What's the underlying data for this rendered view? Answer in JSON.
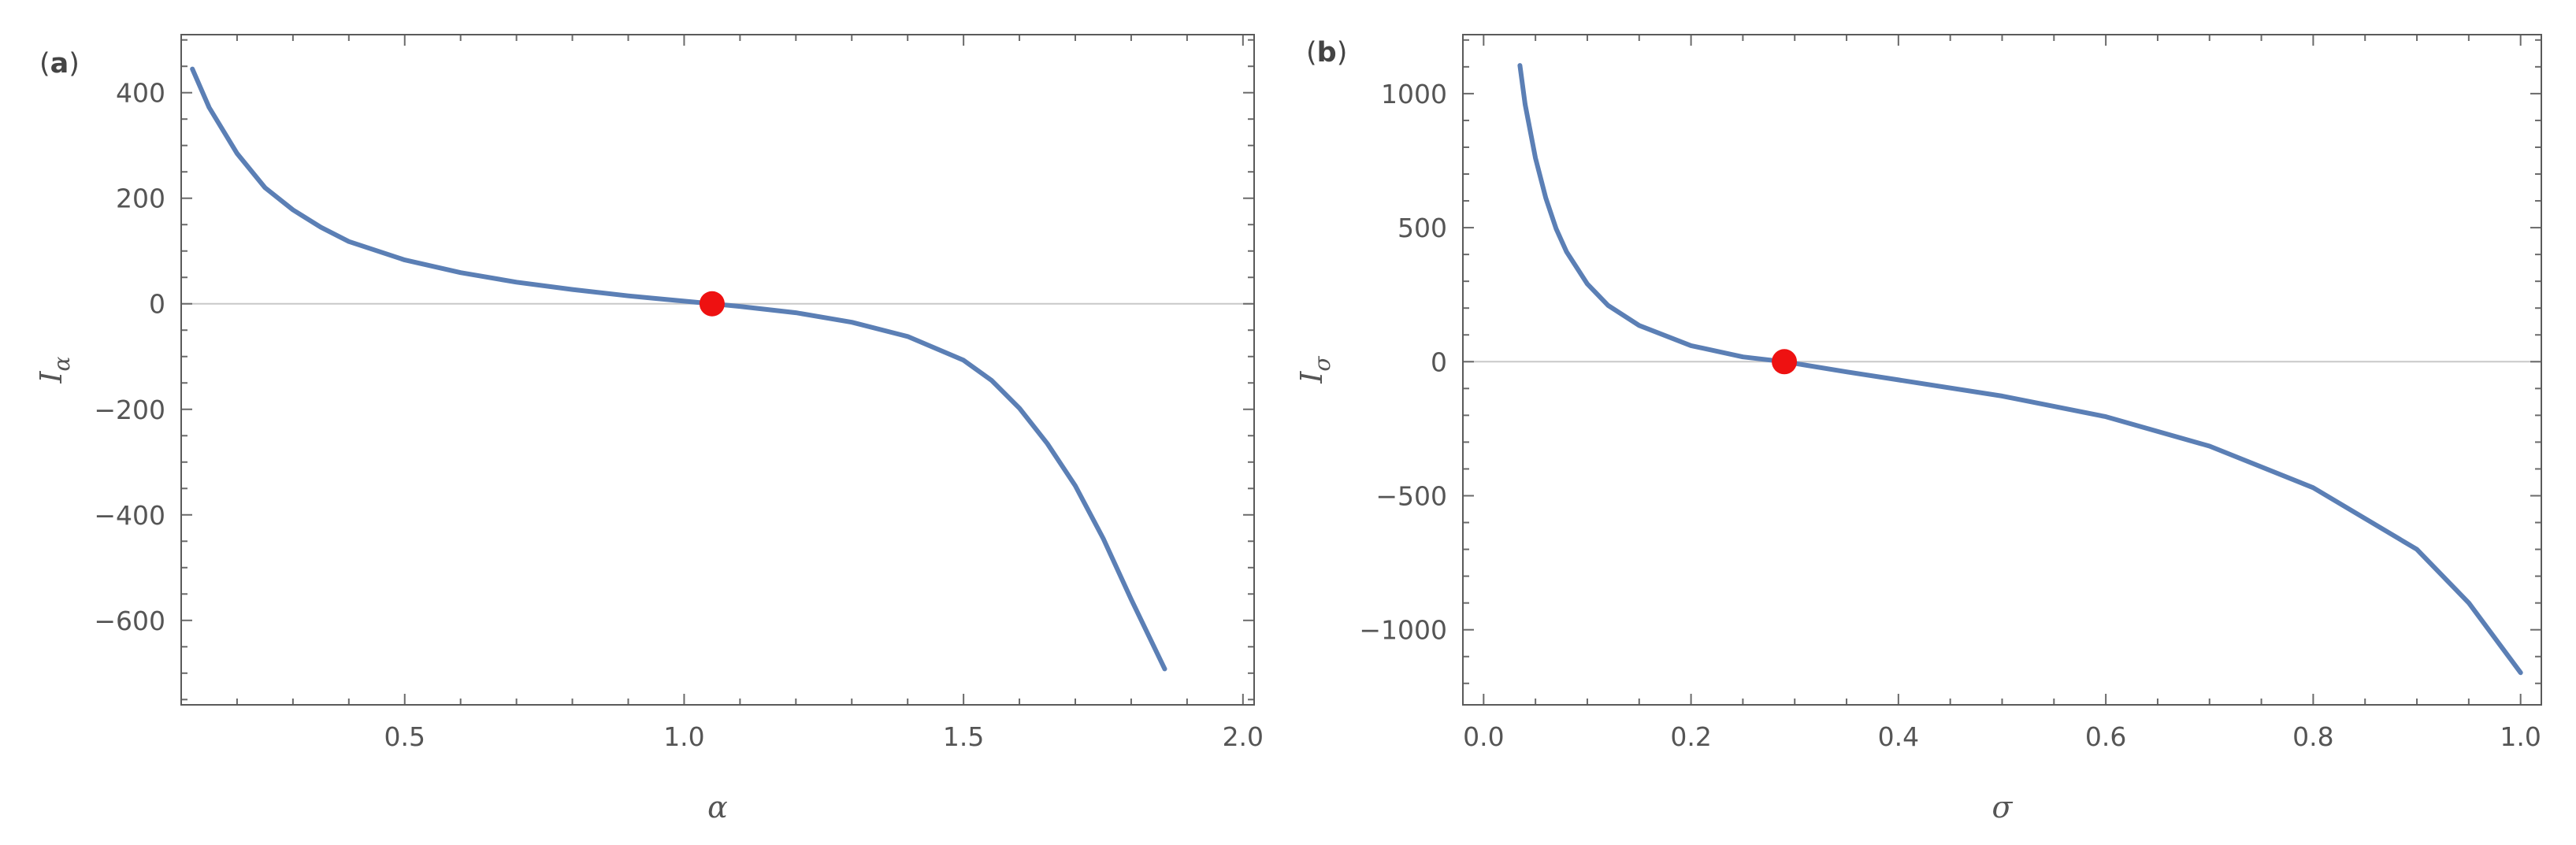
{
  "colors": {
    "curve": "#5b7fb5",
    "marker": "#ee1111"
  },
  "chart_data": [
    {
      "type": "line",
      "panel_label": {
        "open": "(",
        "letter": "a",
        "close": ")"
      },
      "xlabel": "α",
      "ylabel": {
        "main": "I",
        "sub": "α"
      },
      "xlim": [
        0.1,
        2.02
      ],
      "ylim": [
        -760,
        510
      ],
      "xticks": [
        {
          "value": 0.5,
          "label": "0.5"
        },
        {
          "value": 1.0,
          "label": "1.0"
        },
        {
          "value": 1.5,
          "label": "1.5"
        },
        {
          "value": 2.0,
          "label": "2.0"
        }
      ],
      "xminor_step": 0.1,
      "yticks": [
        {
          "value": 400,
          "label": "400"
        },
        {
          "value": 200,
          "label": "200"
        },
        {
          "value": 0,
          "label": "0"
        },
        {
          "value": -200,
          "label": "−200"
        },
        {
          "value": -400,
          "label": "−400"
        },
        {
          "value": -600,
          "label": "−600"
        }
      ],
      "yminor_step": 50,
      "zero_line": true,
      "series": [
        {
          "points": [
            [
              0.12,
              445
            ],
            [
              0.15,
              372
            ],
            [
              0.2,
              285
            ],
            [
              0.25,
              220
            ],
            [
              0.3,
              178
            ],
            [
              0.35,
              145
            ],
            [
              0.4,
              118
            ],
            [
              0.5,
              83
            ],
            [
              0.6,
              59
            ],
            [
              0.7,
              41
            ],
            [
              0.8,
              27
            ],
            [
              0.9,
              15
            ],
            [
              1.0,
              5
            ],
            [
              1.05,
              0
            ],
            [
              1.1,
              -5
            ],
            [
              1.2,
              -17
            ],
            [
              1.3,
              -35
            ],
            [
              1.4,
              -62
            ],
            [
              1.5,
              -107
            ],
            [
              1.55,
              -145
            ],
            [
              1.6,
              -198
            ],
            [
              1.65,
              -265
            ],
            [
              1.7,
              -345
            ],
            [
              1.75,
              -445
            ],
            [
              1.8,
              -560
            ],
            [
              1.86,
              -692
            ]
          ]
        }
      ],
      "marker": {
        "x": 1.05,
        "y": 0
      }
    },
    {
      "type": "line",
      "panel_label": {
        "open": "(",
        "letter": "b",
        "close": ")"
      },
      "xlabel": "σ",
      "ylabel": {
        "main": "I",
        "sub": "σ"
      },
      "xlim": [
        -0.02,
        1.02
      ],
      "ylim": [
        -1280,
        1220
      ],
      "xticks": [
        {
          "value": 0.0,
          "label": "0.0"
        },
        {
          "value": 0.2,
          "label": "0.2"
        },
        {
          "value": 0.4,
          "label": "0.4"
        },
        {
          "value": 0.6,
          "label": "0.6"
        },
        {
          "value": 0.8,
          "label": "0.8"
        },
        {
          "value": 1.0,
          "label": "1.0"
        }
      ],
      "xminor_step": 0.05,
      "yticks": [
        {
          "value": 1000,
          "label": "1000"
        },
        {
          "value": 500,
          "label": "500"
        },
        {
          "value": 0,
          "label": "0"
        },
        {
          "value": -500,
          "label": "−500"
        },
        {
          "value": -1000,
          "label": "−1000"
        }
      ],
      "yminor_step": 100,
      "zero_line": true,
      "series": [
        {
          "points": [
            [
              0.035,
              1105
            ],
            [
              0.04,
              960
            ],
            [
              0.05,
              760
            ],
            [
              0.06,
              610
            ],
            [
              0.07,
              495
            ],
            [
              0.08,
              410
            ],
            [
              0.1,
              290
            ],
            [
              0.12,
              210
            ],
            [
              0.15,
              135
            ],
            [
              0.2,
              60
            ],
            [
              0.25,
              18
            ],
            [
              0.29,
              0
            ],
            [
              0.35,
              -38
            ],
            [
              0.4,
              -68
            ],
            [
              0.5,
              -128
            ],
            [
              0.6,
              -205
            ],
            [
              0.7,
              -315
            ],
            [
              0.8,
              -470
            ],
            [
              0.9,
              -700
            ],
            [
              0.95,
              -900
            ],
            [
              1.0,
              -1160
            ]
          ]
        }
      ],
      "marker": {
        "x": 0.29,
        "y": 0
      }
    }
  ]
}
